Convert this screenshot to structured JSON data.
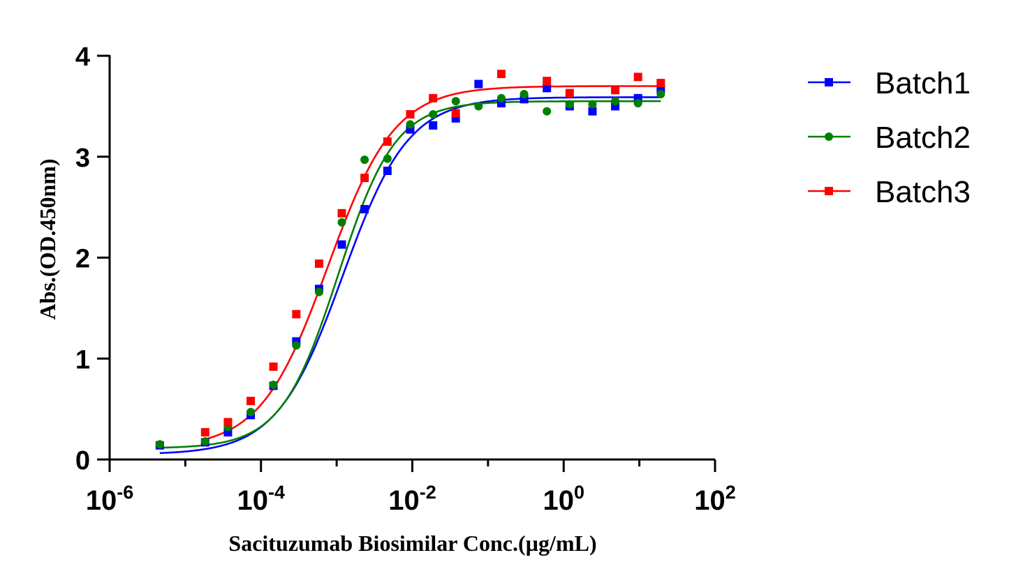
{
  "chart_data": {
    "type": "scatter",
    "title": "",
    "xlabel": "Sacituzumab Biosimilar Conc.(µg/mL)",
    "ylabel": "Abs.(OD.450nm)",
    "x_scale": "log10",
    "xlim": [
      1e-06,
      100
    ],
    "ylim": [
      0,
      4
    ],
    "x_ticks": [
      {
        "base": "10",
        "exp": "-6"
      },
      {
        "base": "10",
        "exp": "-4"
      },
      {
        "base": "10",
        "exp": "-2"
      },
      {
        "base": "10",
        "exp": "0"
      },
      {
        "base": "10",
        "exp": "2"
      }
    ],
    "y_ticks": [
      "0",
      "1",
      "2",
      "3",
      "4"
    ],
    "grid": false,
    "legend_position": "right",
    "series": [
      {
        "name": "Batch1",
        "color": "#0000ff",
        "marker": "square",
        "x": [
          4.6e-06,
          1.83e-05,
          3.66e-05,
          7.32e-05,
          0.000146,
          0.000293,
          0.000586,
          0.00117,
          0.00234,
          0.00469,
          0.00938,
          0.0188,
          0.0375,
          0.075,
          0.15,
          0.3,
          0.6,
          1.2,
          2.4,
          4.8,
          9.6,
          19.2
        ],
        "y": [
          0.14,
          0.17,
          0.27,
          0.44,
          0.73,
          1.17,
          1.69,
          2.13,
          2.48,
          2.86,
          3.27,
          3.31,
          3.38,
          3.72,
          3.53,
          3.57,
          3.68,
          3.5,
          3.45,
          3.5,
          3.58,
          3.67
        ],
        "fit": {
          "bottom": 0.05,
          "top": 3.59,
          "logEC50": -2.92,
          "hill": 1.0
        }
      },
      {
        "name": "Batch2",
        "color": "#008000",
        "marker": "circle",
        "x": [
          4.6e-06,
          1.83e-05,
          3.66e-05,
          7.32e-05,
          0.000146,
          0.000293,
          0.000586,
          0.00117,
          0.00234,
          0.00469,
          0.00938,
          0.0188,
          0.0375,
          0.075,
          0.15,
          0.3,
          0.6,
          1.2,
          2.4,
          4.8,
          9.6,
          19.2
        ],
        "y": [
          0.15,
          0.18,
          0.32,
          0.47,
          0.74,
          1.13,
          1.66,
          2.35,
          2.97,
          2.98,
          3.32,
          3.42,
          3.55,
          3.5,
          3.58,
          3.62,
          3.45,
          3.52,
          3.52,
          3.55,
          3.53,
          3.62
        ],
        "fit": {
          "bottom": 0.11,
          "top": 3.55,
          "logEC50": -2.98,
          "hill": 1.15
        }
      },
      {
        "name": "Batch3",
        "color": "#ff0000",
        "marker": "square",
        "x": [
          1.83e-05,
          3.66e-05,
          7.32e-05,
          0.000146,
          0.000293,
          0.000586,
          0.00117,
          0.00234,
          0.00469,
          0.00938,
          0.0188,
          0.0375,
          0.15,
          0.6,
          1.2,
          4.8,
          9.6,
          19.2
        ],
        "y": [
          0.27,
          0.37,
          0.58,
          0.92,
          1.44,
          1.94,
          2.44,
          2.79,
          3.15,
          3.42,
          3.58,
          3.43,
          3.82,
          3.75,
          3.63,
          3.66,
          3.79,
          3.73
        ],
        "fit": {
          "bottom": 0.11,
          "top": 3.7,
          "logEC50": -3.12,
          "hill": 0.98
        }
      }
    ]
  }
}
